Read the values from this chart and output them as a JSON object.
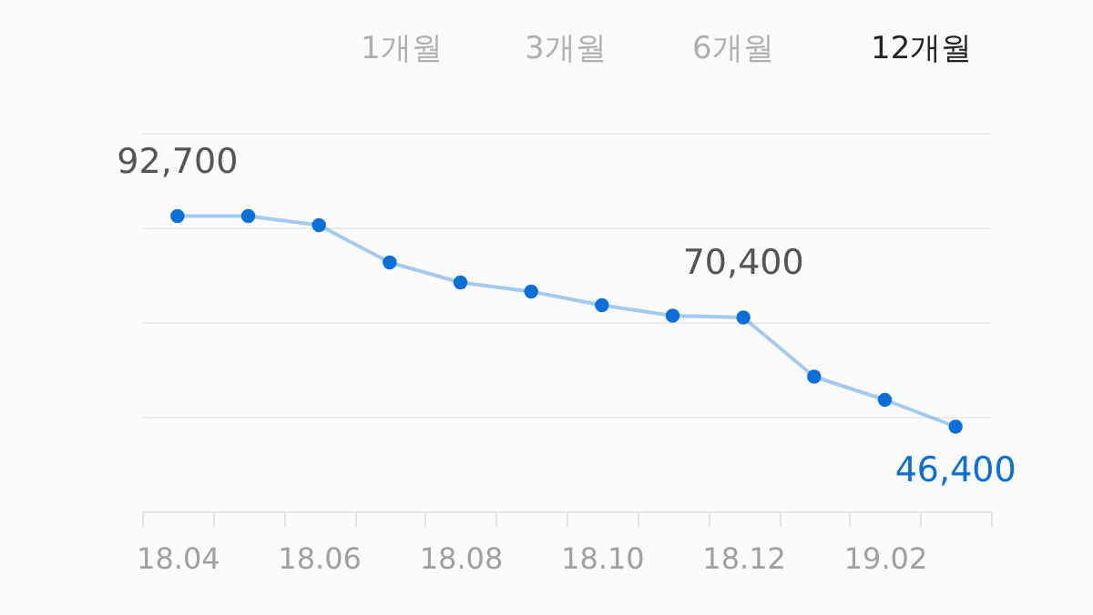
{
  "chart_data": {
    "type": "line",
    "categories": [
      "18.04",
      null,
      "18.06",
      null,
      "18.08",
      null,
      "18.10",
      null,
      "18.12",
      null,
      "19.02",
      null
    ],
    "series": [
      {
        "color": "#0a6fd8",
        "values": [
          92700,
          92700,
          90700,
          82500,
          78100,
          76100,
          73100,
          70800,
          70400,
          57400,
          52300,
          46400
        ],
        "value_labels": [
          "92,700",
          null,
          null,
          null,
          null,
          null,
          null,
          null,
          "70,400",
          null,
          null,
          "46,400"
        ]
      }
    ],
    "ylim": [
      27800,
      111000
    ],
    "yticks": [
      {
        "value": 27800,
        "label": null
      },
      {
        "value": 48600,
        "label": null
      },
      {
        "value": 69400,
        "label": null
      },
      {
        "value": 90200,
        "label": null
      },
      {
        "value": 111000,
        "label": null
      }
    ],
    "tick_labels": "x",
    "grid": "y",
    "marker": "circle",
    "line_style": "solid",
    "annotations": [
      "1개월",
      "3개월",
      "6개월",
      "12개월"
    ]
  }
}
